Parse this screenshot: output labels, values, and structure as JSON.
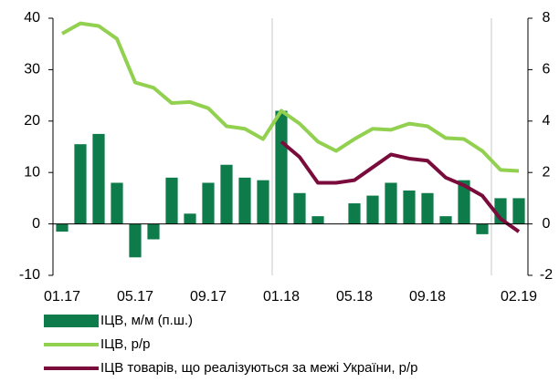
{
  "chart_data": {
    "type": "combo",
    "categories": [
      "01.17",
      null,
      null,
      null,
      "05.17",
      null,
      null,
      null,
      "09.17",
      null,
      null,
      null,
      "01.18",
      null,
      null,
      null,
      "05.18",
      null,
      null,
      null,
      "09.18",
      null,
      null,
      null,
      null,
      "02.19"
    ],
    "series": [
      {
        "name": "ІЦВ, м/м  (п.ш.)",
        "type": "bar",
        "axis": "y2",
        "color": "#0e7c4a",
        "values": [
          -0.3,
          3.1,
          3.5,
          1.6,
          -1.3,
          -0.6,
          1.8,
          0.4,
          1.6,
          2.3,
          1.8,
          1.7,
          4.4,
          1.2,
          0.3,
          0,
          0.8,
          1.1,
          1.6,
          1.3,
          1.2,
          0.3,
          1.7,
          -0.4,
          1.0,
          1.0
        ]
      },
      {
        "name": "ІЦВ, р/р",
        "type": "line",
        "color": "#92d050",
        "values": [
          37,
          39,
          38.5,
          36,
          27.5,
          26.5,
          23.5,
          23.7,
          22.5,
          19,
          18.5,
          16.5,
          22,
          19.5,
          16,
          14.2,
          16.5,
          18.5,
          18.3,
          19.5,
          19,
          16.7,
          16.5,
          14.2,
          10.5,
          10.3
        ]
      },
      {
        "name": "ІЦВ товарів, що реалізуються за межі України, р/р",
        "type": "line",
        "color": "#7a0c3c",
        "values": [
          null,
          null,
          null,
          null,
          null,
          null,
          null,
          null,
          null,
          null,
          null,
          null,
          16,
          13,
          8,
          8,
          8.5,
          11,
          13.5,
          12.7,
          12.3,
          9,
          7.5,
          5.5,
          1,
          -1.5
        ]
      }
    ],
    "ylim": [
      -10,
      40
    ],
    "yticks": [
      -10,
      0,
      10,
      20,
      30,
      40
    ],
    "y2lim": [
      -2,
      8
    ],
    "y2ticks": [
      -2,
      0,
      2,
      4,
      6,
      8
    ]
  }
}
